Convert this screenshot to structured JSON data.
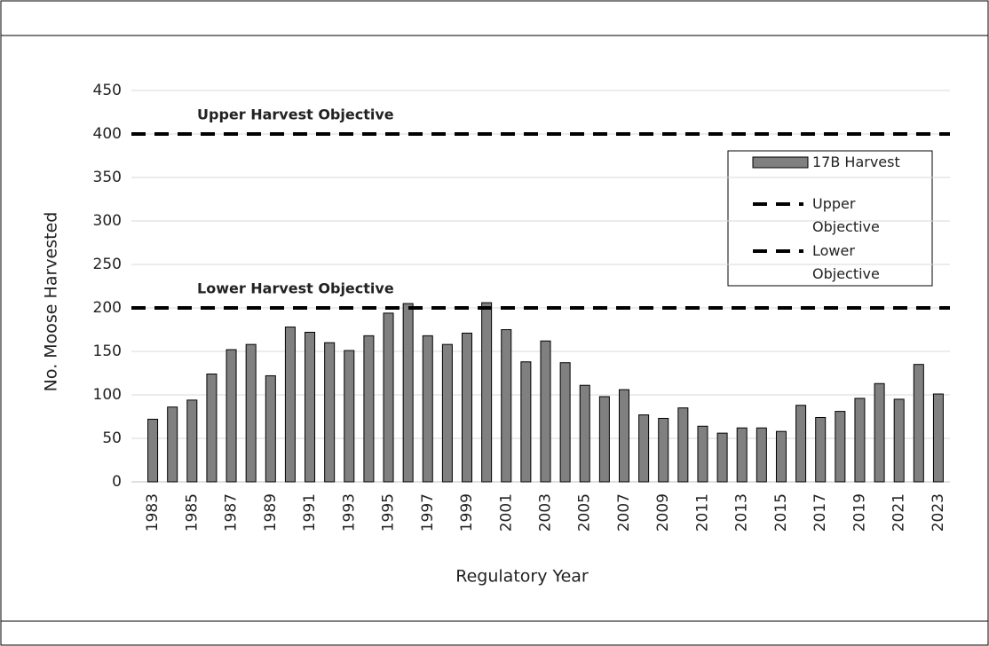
{
  "chart_data": {
    "type": "bar",
    "y_label": "No. Moose Harvested",
    "x_label": "Regulatory Year",
    "categories": [
      "1983",
      null,
      "1985",
      null,
      "1987",
      null,
      "1989",
      null,
      "1991",
      null,
      "1993",
      null,
      "1995",
      null,
      "1997",
      null,
      "1999",
      null,
      "2001",
      null,
      "2003",
      null,
      "2005",
      null,
      "2007",
      null,
      "2009",
      null,
      "2011",
      null,
      "2013",
      null,
      "2015",
      null,
      "2017",
      null,
      "2019",
      null,
      "2021",
      null,
      "2023"
    ],
    "series": [
      {
        "name": "17B Harvest",
        "color": "#808080",
        "values": [
          72,
          86,
          94,
          124,
          152,
          158,
          122,
          178,
          172,
          160,
          151,
          168,
          194,
          205,
          168,
          158,
          171,
          206,
          175,
          138,
          162,
          137,
          111,
          98,
          106,
          77,
          73,
          85,
          64,
          56,
          62,
          62,
          58,
          88,
          74,
          81,
          96,
          113,
          95,
          135,
          101
        ]
      }
    ],
    "reference_lines": [
      {
        "name": "Upper Objective",
        "value": 400,
        "annotation": "Upper Harvest Objective",
        "color": "#000000"
      },
      {
        "name": "Lower Objective",
        "value": 200,
        "annotation": "Lower Harvest Objective",
        "color": "#000000"
      }
    ],
    "ylim": [
      0,
      450
    ],
    "yticks": [
      0,
      50,
      100,
      150,
      200,
      250,
      300,
      350,
      400,
      450
    ],
    "grid": true,
    "legend": "upper right"
  }
}
